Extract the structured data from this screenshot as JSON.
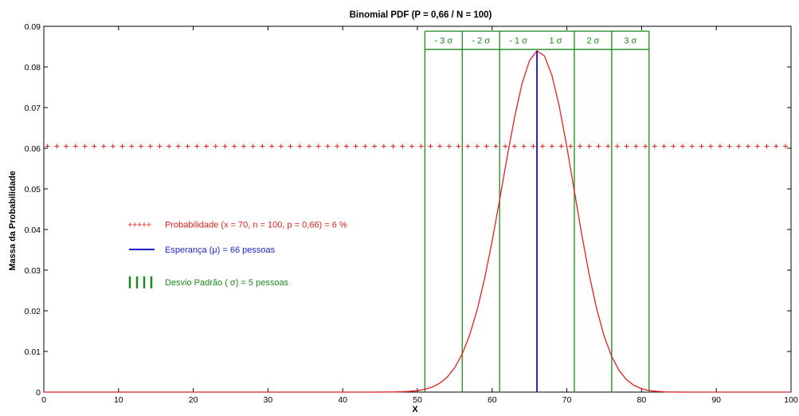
{
  "chart_data": {
    "type": "line",
    "title": "Binomial PDF (P = 0,66 / N = 100)",
    "xlabel": "X",
    "ylabel": "Massa da Probabilidade",
    "xlim": [
      0,
      100
    ],
    "ylim": [
      0,
      0.09
    ],
    "x_ticks": [
      "0",
      "10",
      "20",
      "30",
      "40",
      "50",
      "60",
      "70",
      "80",
      "90",
      "100"
    ],
    "y_ticks": [
      "0",
      "0.01",
      "0.02",
      "0.03",
      "0.04",
      "0.05",
      "0.06",
      "0.07",
      "0.08",
      "0.09"
    ],
    "grid": false,
    "params": {
      "n": 100,
      "p": 0.66,
      "mean": 66,
      "sigma": 5
    },
    "series": [
      {
        "name": "Probabilidade (x = 70, n = 100, p = 0,66) = 6 %",
        "style": "red plus markers",
        "y": 0.0605
      },
      {
        "name": "Esperança (μ) = 66 pessoas",
        "style": "blue vertical line",
        "x": 66
      },
      {
        "name": "Desvio Padrão ( σ) = 5 pessoas",
        "style": "green vertical lines",
        "x": [
          51,
          56,
          61,
          71,
          76,
          81
        ]
      }
    ],
    "sigma_bands": [
      {
        "label": "- 3  σ",
        "from": 51,
        "to": 56
      },
      {
        "label": "- 2  σ",
        "from": 56,
        "to": 61
      },
      {
        "label": "- 1  σ",
        "from": 61,
        "to": 66
      },
      {
        "label": "1  σ",
        "from": 66,
        "to": 71
      },
      {
        "label": "2  σ",
        "from": 71,
        "to": 76
      },
      {
        "label": "3  σ",
        "from": 76,
        "to": 81
      }
    ],
    "legend": [
      {
        "marker": "+++++",
        "text": "Probabilidade (x = 70, n = 100, p = 0,66) = 6 %",
        "color": "#e0201f"
      },
      {
        "marker": "line",
        "text": "Esperança (μ) = 66 pessoas",
        "color": "#1f1fcf"
      },
      {
        "marker": "||||",
        "text": "Desvio Padrão ( σ) = 5 pessoas",
        "color": "#1a8a1a"
      }
    ],
    "colors": {
      "pdf": "#e0201f",
      "mean": "#1f1fcf",
      "sigma": "#1a8a1a",
      "axis": "#000000"
    }
  }
}
